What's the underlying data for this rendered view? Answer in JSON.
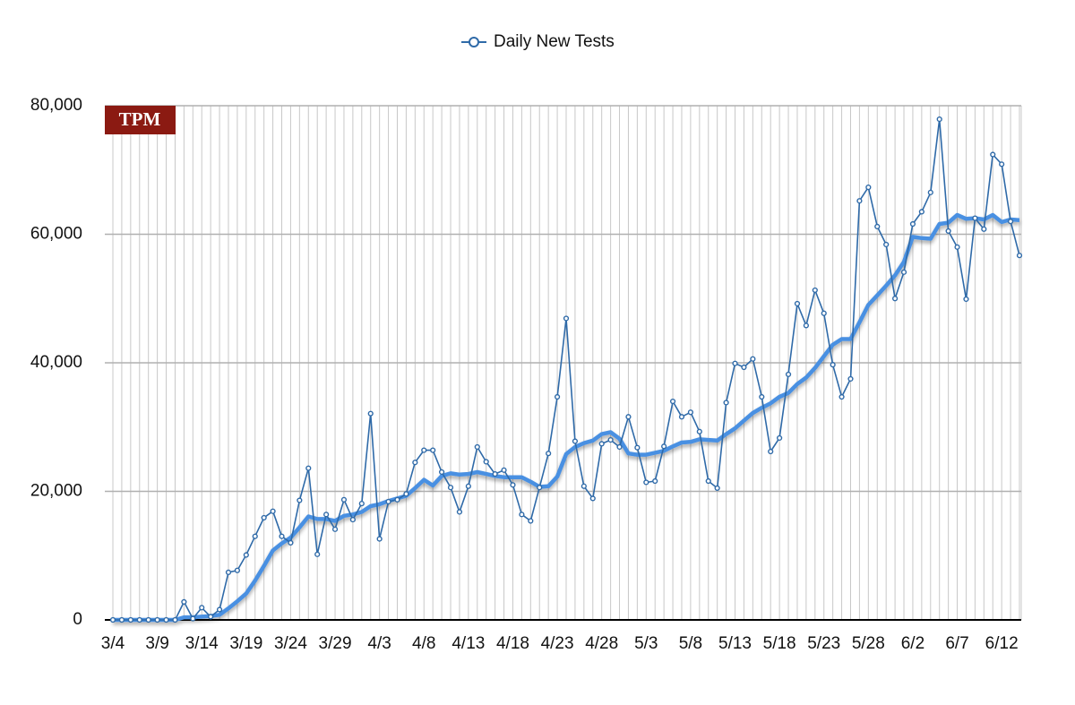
{
  "chart_data": {
    "type": "line",
    "logo": "TPM",
    "categories": [
      "3/4",
      null,
      null,
      null,
      null,
      "3/9",
      null,
      null,
      null,
      null,
      "3/14",
      null,
      null,
      null,
      null,
      "3/19",
      null,
      null,
      null,
      null,
      "3/24",
      null,
      null,
      null,
      null,
      "3/29",
      null,
      null,
      null,
      null,
      "4/3",
      null,
      null,
      null,
      null,
      "4/8",
      null,
      null,
      null,
      null,
      "4/13",
      null,
      null,
      null,
      null,
      "4/18",
      null,
      null,
      null,
      null,
      "4/23",
      null,
      null,
      null,
      null,
      "4/28",
      null,
      null,
      null,
      null,
      "5/3",
      null,
      null,
      null,
      null,
      "5/8",
      null,
      null,
      null,
      null,
      "5/13",
      null,
      null,
      null,
      null,
      "5/18",
      null,
      null,
      null,
      null,
      "5/23",
      null,
      null,
      null,
      null,
      "5/28",
      null,
      null,
      null,
      null,
      "6/2",
      null,
      null,
      null,
      null,
      "6/7",
      null,
      null,
      null,
      null,
      "6/12",
      null,
      null
    ],
    "series": [
      {
        "name": "Daily New Tests",
        "color": "#2f6aa8",
        "markers": true,
        "values": [
          0,
          0,
          0,
          0,
          0,
          0,
          0,
          0,
          2800,
          200,
          1900,
          500,
          1600,
          7400,
          7700,
          10100,
          13000,
          15900,
          16900,
          13000,
          12000,
          18600,
          23600,
          10200,
          16400,
          14100,
          18700,
          15600,
          18100,
          32100,
          12600,
          18400,
          18700,
          19600,
          24500,
          26400,
          26400,
          23000,
          20600,
          16800,
          20800,
          26900,
          24600,
          22700,
          23300,
          21000,
          16400,
          15400,
          20600,
          25900,
          34700,
          46900,
          27800,
          20800,
          18900,
          27400,
          28000,
          26900,
          31600,
          26800,
          21400,
          21600,
          27000,
          34000,
          31600,
          32300,
          29300,
          21600,
          20500,
          33800,
          39900,
          39300,
          40600,
          34700,
          26200,
          28300,
          38200,
          49200,
          45800,
          51300,
          47700,
          39700,
          34700,
          37500,
          65200,
          67300,
          61200,
          58400,
          50000,
          54100,
          61600,
          63500,
          66500,
          77900,
          60500,
          58000,
          49900,
          62500,
          60800,
          72400,
          70900,
          62000,
          56700
        ]
      },
      {
        "color": "#4a90e2",
        "markers": false,
        "values": [
          0,
          0,
          0,
          0,
          0,
          0,
          0,
          0,
          400,
          400,
          500,
          600,
          800,
          1800,
          2900,
          4100,
          6100,
          8400,
          10800,
          11900,
          12800,
          14400,
          16100,
          15700,
          15700,
          15400,
          16200,
          16400,
          16800,
          17700,
          18000,
          18500,
          18900,
          19300,
          20500,
          21800,
          20900,
          22400,
          22800,
          22600,
          22700,
          23000,
          22700,
          22400,
          22200,
          22200,
          22200,
          21500,
          20700,
          20800,
          22300,
          25800,
          26900,
          27500,
          27900,
          28900,
          29200,
          28200,
          25900,
          25700,
          25700,
          26000,
          26300,
          27000,
          27600,
          27700,
          28100,
          28000,
          27900,
          28900,
          29800,
          31000,
          32200,
          33000,
          33700,
          34700,
          35300,
          36700,
          37700,
          39200,
          41000,
          42800,
          43700,
          43700,
          46300,
          49000,
          50500,
          52000,
          53600,
          55700,
          59600,
          59400,
          59300,
          61600,
          61800,
          63000,
          62400,
          62500,
          62300,
          63000,
          61900,
          62300,
          62200
        ]
      }
    ],
    "ylim": [
      0,
      80000
    ],
    "yticks": [
      0,
      {
        "value": 20000,
        "label": "20,000"
      },
      {
        "value": 40000,
        "label": "40,000"
      },
      {
        "value": 60000,
        "label": "60,000"
      },
      {
        "value": 80000,
        "label": "80,000"
      }
    ],
    "grid": true,
    "legend": "top"
  }
}
